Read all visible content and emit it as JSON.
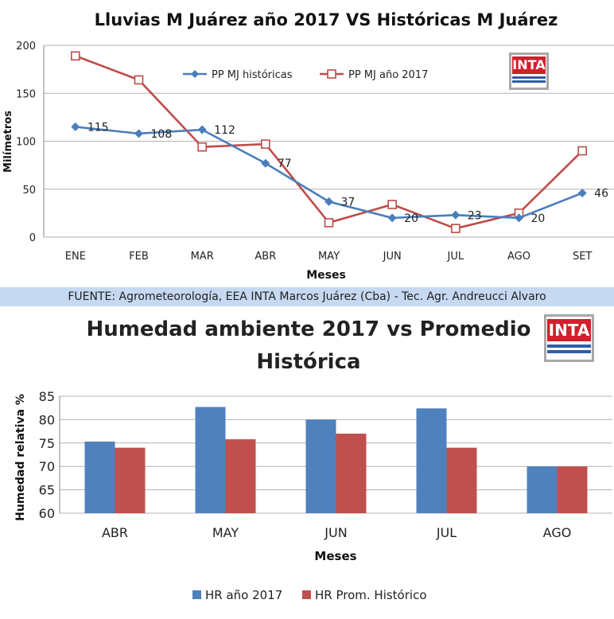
{
  "source_text": "FUENTE: Agrometeorología, EEA  INTA Marcos Juárez (Cba) - Tec. Agr.  Andreucci Alvaro",
  "logo_text": "INTA",
  "colors": {
    "series_blue": "#4a7ebb",
    "series_red": "#be4b48",
    "bar_blue": "#4f81bd",
    "bar_red": "#c0504d",
    "source_bar": "#c6d9f1"
  },
  "chart_data": [
    {
      "type": "line",
      "title": "Lluvias M Juárez año 2017 VS Históricas M Juárez",
      "xlabel": "Meses",
      "ylabel": "Milímetros",
      "categories": [
        "ENE",
        "FEB",
        "MAR",
        "ABR",
        "MAY",
        "JUN",
        "JUL",
        "AGO",
        "SET"
      ],
      "ylim": [
        0,
        200
      ],
      "yticks": [
        0,
        50,
        100,
        150,
        200
      ],
      "grid": true,
      "legend_position": "top",
      "series": [
        {
          "name": "PP MJ históricas",
          "values": [
            115,
            108,
            112,
            77,
            37,
            20,
            23,
            20,
            46
          ],
          "marker": "diamond",
          "data_labels": [
            "115",
            "108",
            "112",
            "77",
            "37",
            "20",
            "23",
            "20",
            "46"
          ]
        },
        {
          "name": "PP MJ año 2017",
          "values": [
            189,
            164,
            94,
            97,
            15,
            34,
            9,
            25,
            90
          ],
          "marker": "square-open"
        }
      ]
    },
    {
      "type": "bar",
      "title": "Humedad ambiente 2017 vs Promedio Histórica",
      "xlabel": "Meses",
      "ylabel": "Humedad relativa %",
      "categories": [
        "ABR",
        "MAY",
        "JUN",
        "JUL",
        "AGO"
      ],
      "ylim": [
        60,
        85
      ],
      "yticks": [
        60,
        65,
        70,
        75,
        80,
        85
      ],
      "grid": true,
      "legend_position": "bottom",
      "series": [
        {
          "name": "HR año 2017",
          "values": [
            75.3,
            82.7,
            80.0,
            82.4,
            70.0
          ]
        },
        {
          "name": "HR Prom. Histórico",
          "values": [
            74.0,
            75.8,
            77.0,
            74.0,
            70.0
          ]
        }
      ]
    }
  ]
}
